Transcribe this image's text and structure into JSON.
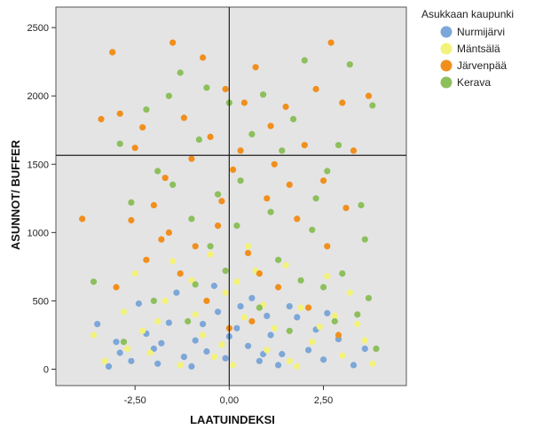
{
  "chart_data": {
    "type": "scatter",
    "xlabel": "LAATUINDEKSI",
    "ylabel": "ASUNNOT/ BUFFER",
    "xlim": [
      -4.6,
      4.7
    ],
    "ylim": [
      -120,
      2650
    ],
    "x_ticks": [
      -2.5,
      0,
      2.5
    ],
    "x_tick_labels": [
      "-2,50",
      "0,00",
      "2,50"
    ],
    "y_ticks": [
      0,
      500,
      1000,
      1500,
      2000,
      2500
    ],
    "y_tick_labels": [
      "0",
      "500",
      "1000",
      "1500",
      "2000",
      "2500"
    ],
    "grid": false,
    "plot_background": "#e4e4e4",
    "reference_lines": {
      "x": 0,
      "y": 1565
    },
    "legend": {
      "title": "Asukkaan kaupunki",
      "placement": "top-right"
    },
    "series": [
      {
        "name": "Nurmijärvi",
        "color": "#7ca7d8",
        "points": [
          [
            -3.2,
            20
          ],
          [
            -2.9,
            120
          ],
          [
            -2.6,
            60
          ],
          [
            -2.2,
            260
          ],
          [
            -1.9,
            40
          ],
          [
            -1.6,
            340
          ],
          [
            -1.2,
            90
          ],
          [
            -0.9,
            210
          ],
          [
            -0.6,
            130
          ],
          [
            -0.3,
            420
          ],
          [
            -0.1,
            80
          ],
          [
            0.2,
            300
          ],
          [
            0.5,
            170
          ],
          [
            0.8,
            60
          ],
          [
            1.1,
            250
          ],
          [
            1.4,
            110
          ],
          [
            1.8,
            380
          ],
          [
            2.1,
            140
          ],
          [
            2.5,
            70
          ],
          [
            2.9,
            220
          ],
          [
            3.3,
            30
          ],
          [
            -3.5,
            330
          ],
          [
            -2.4,
            480
          ],
          [
            -1.4,
            560
          ],
          [
            -0.4,
            610
          ],
          [
            0.6,
            520
          ],
          [
            1.6,
            460
          ],
          [
            2.6,
            410
          ],
          [
            -1.8,
            190
          ],
          [
            0.0,
            240
          ],
          [
            1.0,
            390
          ],
          [
            -2.0,
            150
          ],
          [
            -0.7,
            330
          ],
          [
            0.3,
            460
          ],
          [
            1.3,
            30
          ],
          [
            2.3,
            290
          ],
          [
            -3.0,
            200
          ],
          [
            3.6,
            150
          ],
          [
            -1.0,
            20
          ],
          [
            0.9,
            110
          ]
        ]
      },
      {
        "name": "Mäntsälä",
        "color": "#f3f27a",
        "points": [
          [
            -3.3,
            60
          ],
          [
            -2.8,
            420
          ],
          [
            -2.5,
            700
          ],
          [
            -2.1,
            120
          ],
          [
            -1.7,
            500
          ],
          [
            -1.3,
            30
          ],
          [
            -1.0,
            650
          ],
          [
            -0.7,
            250
          ],
          [
            -0.4,
            90
          ],
          [
            -0.1,
            560
          ],
          [
            0.1,
            30
          ],
          [
            0.4,
            380
          ],
          [
            0.7,
            720
          ],
          [
            1.0,
            140
          ],
          [
            1.3,
            600
          ],
          [
            1.6,
            60
          ],
          [
            1.9,
            450
          ],
          [
            2.2,
            200
          ],
          [
            2.6,
            680
          ],
          [
            3.0,
            100
          ],
          [
            3.4,
            330
          ],
          [
            3.8,
            40
          ],
          [
            -3.6,
            250
          ],
          [
            -2.3,
            280
          ],
          [
            -1.5,
            790
          ],
          [
            -0.5,
            840
          ],
          [
            0.5,
            900
          ],
          [
            1.5,
            760
          ],
          [
            2.4,
            310
          ],
          [
            3.2,
            560
          ],
          [
            -1.9,
            350
          ],
          [
            -0.2,
            180
          ],
          [
            0.9,
            470
          ],
          [
            1.8,
            20
          ],
          [
            2.8,
            390
          ],
          [
            -2.7,
            150
          ],
          [
            0.2,
            640
          ],
          [
            1.2,
            300
          ],
          [
            3.6,
            210
          ],
          [
            -0.9,
            400
          ]
        ]
      },
      {
        "name": "Järvenpää",
        "color": "#f18f1d",
        "points": [
          [
            -3.9,
            1100
          ],
          [
            -3.4,
            1830
          ],
          [
            -3.1,
            2320
          ],
          [
            -2.9,
            1870
          ],
          [
            -2.6,
            1090
          ],
          [
            -2.3,
            1770
          ],
          [
            -2.0,
            1200
          ],
          [
            -1.7,
            1400
          ],
          [
            -1.5,
            2390
          ],
          [
            -1.2,
            1840
          ],
          [
            -0.9,
            900
          ],
          [
            -0.7,
            2280
          ],
          [
            -0.5,
            1700
          ],
          [
            -0.3,
            1050
          ],
          [
            -0.1,
            2050
          ],
          [
            0.1,
            1460
          ],
          [
            0.3,
            1600
          ],
          [
            0.5,
            850
          ],
          [
            0.7,
            2210
          ],
          [
            1.0,
            1250
          ],
          [
            1.2,
            1500
          ],
          [
            1.5,
            1920
          ],
          [
            1.8,
            1100
          ],
          [
            2.0,
            1640
          ],
          [
            2.3,
            2050
          ],
          [
            2.5,
            1380
          ],
          [
            2.7,
            2390
          ],
          [
            3.0,
            1950
          ],
          [
            3.3,
            1600
          ],
          [
            3.7,
            2000
          ],
          [
            -3.0,
            600
          ],
          [
            -2.2,
            800
          ],
          [
            -1.3,
            700
          ],
          [
            -0.6,
            500
          ],
          [
            0.0,
            300
          ],
          [
            0.6,
            350
          ],
          [
            1.3,
            600
          ],
          [
            2.1,
            450
          ],
          [
            2.9,
            250
          ],
          [
            -1.8,
            950
          ],
          [
            -2.5,
            1620
          ],
          [
            -1.0,
            1540
          ],
          [
            0.4,
            1950
          ],
          [
            1.6,
            1350
          ],
          [
            2.6,
            900
          ],
          [
            -0.2,
            1230
          ],
          [
            0.8,
            700
          ],
          [
            -1.6,
            1000
          ],
          [
            1.1,
            1780
          ],
          [
            3.1,
            1180
          ]
        ]
      },
      {
        "name": "Kerava",
        "color": "#8dbf5c",
        "points": [
          [
            -3.6,
            640
          ],
          [
            -2.9,
            1650
          ],
          [
            -2.6,
            1220
          ],
          [
            -2.2,
            1900
          ],
          [
            -1.9,
            1450
          ],
          [
            -1.6,
            2000
          ],
          [
            -1.3,
            2170
          ],
          [
            -1.0,
            1100
          ],
          [
            -0.8,
            1680
          ],
          [
            -0.6,
            2060
          ],
          [
            -0.3,
            1280
          ],
          [
            0.0,
            1950
          ],
          [
            0.3,
            1380
          ],
          [
            0.6,
            1720
          ],
          [
            0.9,
            2010
          ],
          [
            1.1,
            1150
          ],
          [
            1.4,
            1600
          ],
          [
            1.7,
            1830
          ],
          [
            2.0,
            2260
          ],
          [
            2.3,
            1250
          ],
          [
            2.6,
            1450
          ],
          [
            2.9,
            1640
          ],
          [
            3.2,
            2230
          ],
          [
            3.5,
            1200
          ],
          [
            3.8,
            1930
          ],
          [
            -2.0,
            500
          ],
          [
            -1.1,
            350
          ],
          [
            -0.1,
            720
          ],
          [
            0.8,
            450
          ],
          [
            1.6,
            280
          ],
          [
            2.5,
            600
          ],
          [
            3.4,
            400
          ],
          [
            3.9,
            150
          ],
          [
            -2.8,
            200
          ],
          [
            -0.5,
            900
          ],
          [
            1.3,
            800
          ],
          [
            2.2,
            1020
          ],
          [
            3.0,
            700
          ],
          [
            3.7,
            520
          ],
          [
            -1.5,
            1350
          ],
          [
            0.2,
            1050
          ],
          [
            1.9,
            650
          ],
          [
            2.8,
            350
          ],
          [
            3.6,
            950
          ],
          [
            -0.9,
            620
          ]
        ]
      }
    ]
  }
}
